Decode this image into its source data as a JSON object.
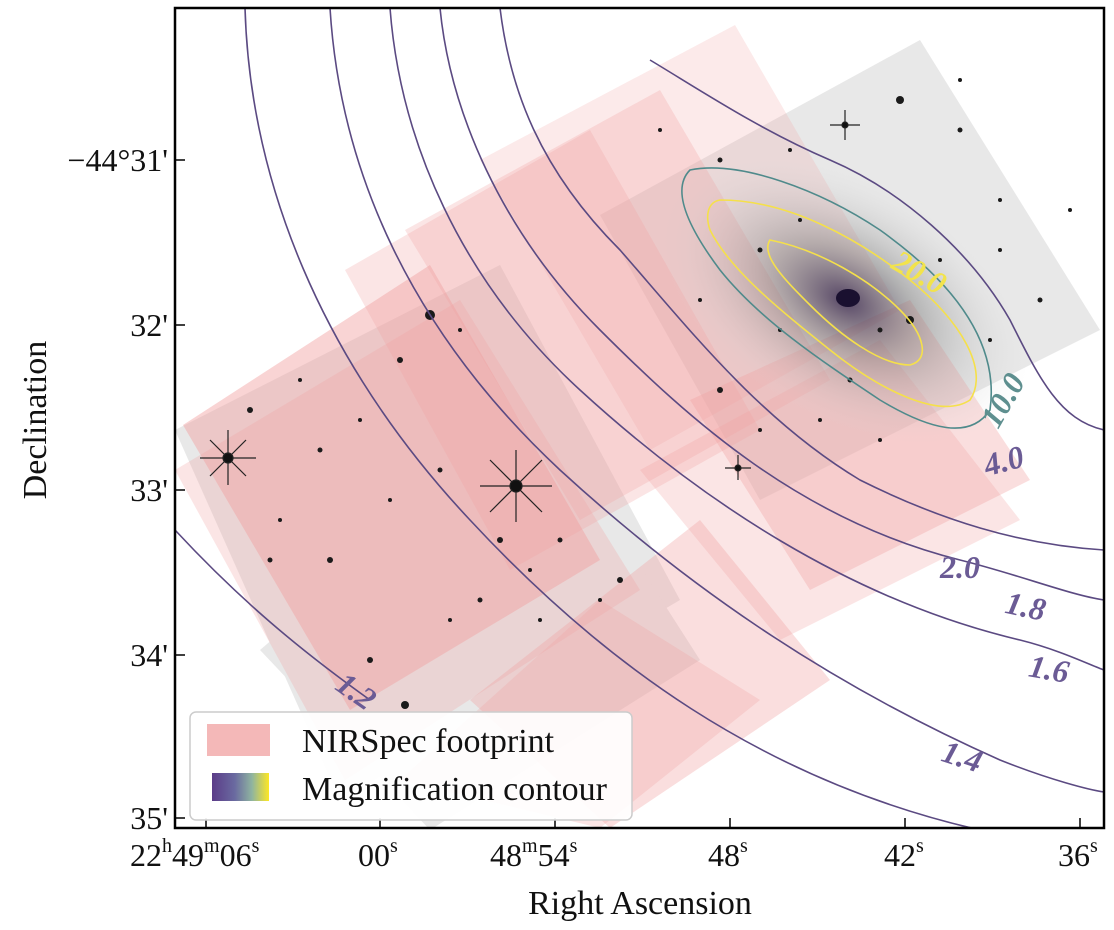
{
  "axes": {
    "xlabel": "Right Ascension",
    "ylabel": "Declination",
    "x_ticks": [
      {
        "main": "22",
        "s1": "h",
        "mid": "49",
        "s2": "m",
        "tail": "06",
        "s3": "s"
      },
      {
        "main": "00",
        "s1": "s"
      },
      {
        "main": "48",
        "s1": "m",
        "mid": "54",
        "s2": "s"
      },
      {
        "main": "48",
        "s1": "s"
      },
      {
        "main": "42",
        "s1": "s"
      },
      {
        "main": "36",
        "s1": "s"
      }
    ],
    "y_ticks": [
      "−44°31'",
      "32'",
      "33'",
      "34'",
      "35'"
    ]
  },
  "contour_labels": [
    {
      "text": "20.0",
      "color": "#f2e34c"
    },
    {
      "text": "10.0",
      "color": "#5e8f8f"
    },
    {
      "text": "4.0",
      "color": "#6b5b95"
    },
    {
      "text": "2.0",
      "color": "#6b5b95"
    },
    {
      "text": "1.8",
      "color": "#6b5b95"
    },
    {
      "text": "1.6",
      "color": "#6b5b95"
    },
    {
      "text": "1.4",
      "color": "#6b5b95"
    },
    {
      "text": "1.2",
      "color": "#6b5b95"
    }
  ],
  "legend": {
    "items": [
      {
        "label": "NIRSpec footprint",
        "color": "#f4b8b8"
      },
      {
        "label": "Magnification contour",
        "gradient": [
          "#5b3c88",
          "#3b7f8f",
          "#7ad151",
          "#fde725"
        ]
      }
    ]
  },
  "colors": {
    "frame": "#000000",
    "footprint": "#f2a0a0",
    "contour_dark": "#5b4a82",
    "contour_teal": "#4f8a8b",
    "contour_yellow": "#f5e04a"
  }
}
